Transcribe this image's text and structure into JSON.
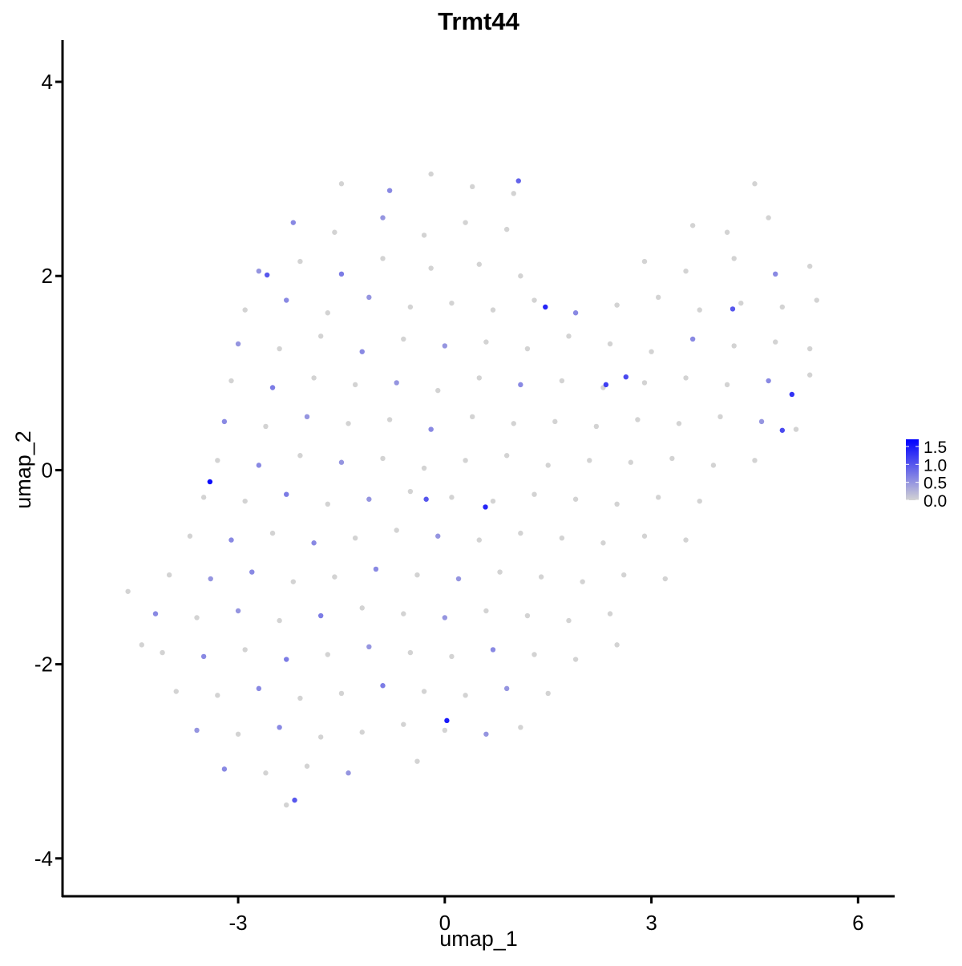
{
  "chart_data": {
    "type": "scatter",
    "title": "Trmt44",
    "xlabel": "umap_1",
    "ylabel": "umap_2",
    "xlim": [
      -5.55,
      6.52
    ],
    "ylim": [
      -4.39,
      4.43
    ],
    "xticks": [
      -3,
      0,
      3,
      6
    ],
    "yticks": [
      -4,
      -2,
      0,
      2,
      4
    ],
    "series": [
      {
        "x": [
          -1.5,
          -0.8,
          -0.2,
          0.4,
          1.0,
          4.5,
          -2.2,
          -1.6,
          -0.9,
          -0.3,
          0.3,
          0.9,
          3.6,
          4.1,
          4.7,
          -2.7,
          -2.1,
          -1.5,
          -0.9,
          -0.2,
          0.5,
          1.1,
          2.9,
          3.5,
          4.2,
          4.8,
          5.3,
          -2.9,
          -2.3,
          -1.7,
          -1.1,
          -0.5,
          0.1,
          0.7,
          1.3,
          1.9,
          2.5,
          3.1,
          3.7,
          4.3,
          4.9,
          5.4,
          -3.0,
          -2.4,
          -1.8,
          -1.2,
          -0.6,
          0.0,
          0.6,
          1.2,
          1.8,
          2.4,
          3.0,
          3.6,
          4.2,
          4.8,
          5.3,
          -3.1,
          -2.5,
          -1.9,
          -1.3,
          -0.7,
          -0.1,
          0.5,
          1.1,
          1.7,
          2.3,
          2.9,
          3.5,
          4.1,
          4.7,
          5.3,
          -3.2,
          -2.6,
          -2.0,
          -1.4,
          -0.8,
          -0.2,
          0.4,
          1.0,
          1.6,
          2.2,
          2.8,
          3.4,
          4.0,
          4.6,
          5.1,
          -3.3,
          -2.7,
          -2.1,
          -1.5,
          -0.9,
          -0.3,
          0.3,
          0.9,
          1.5,
          2.1,
          2.7,
          3.3,
          3.9,
          4.5,
          -3.5,
          -2.9,
          -2.3,
          -1.7,
          -1.1,
          -0.5,
          0.1,
          0.7,
          1.3,
          1.9,
          2.5,
          3.1,
          3.7,
          -3.7,
          -3.1,
          -2.5,
          -1.9,
          -1.3,
          -0.7,
          -0.1,
          0.5,
          1.1,
          1.7,
          2.3,
          2.9,
          3.5,
          -4.0,
          -3.4,
          -2.8,
          -2.2,
          -1.6,
          -1.0,
          -0.4,
          0.2,
          0.8,
          1.4,
          2.0,
          2.6,
          3.2,
          -4.2,
          -3.6,
          -3.0,
          -2.4,
          -1.8,
          -1.2,
          -0.6,
          0.0,
          0.6,
          1.2,
          1.8,
          2.4,
          -4.1,
          -3.5,
          -2.9,
          -2.3,
          -1.7,
          -1.1,
          -0.5,
          0.1,
          0.7,
          1.3,
          1.9,
          -3.9,
          -3.3,
          -2.7,
          -2.1,
          -1.5,
          -0.9,
          -0.3,
          0.3,
          0.9,
          1.5,
          -3.6,
          -3.0,
          -2.4,
          -1.8,
          -1.2,
          -0.6,
          0.0,
          0.6,
          1.1,
          -3.2,
          -2.6,
          -2.0,
          -1.4,
          -0.4,
          -2.3,
          -4.6,
          -4.4,
          2.5,
          -3.41,
          0.03,
          1.46,
          0.59,
          5.04,
          2.34,
          2.63,
          4.9,
          -2.18,
          4.18,
          -2.58,
          1.07,
          -0.27
        ],
        "y": [
          2.95,
          2.88,
          3.05,
          2.92,
          2.85,
          2.95,
          2.55,
          2.45,
          2.6,
          2.42,
          2.55,
          2.48,
          2.52,
          2.45,
          2.6,
          2.05,
          2.15,
          2.02,
          2.18,
          2.08,
          2.12,
          2.0,
          2.15,
          2.05,
          2.18,
          2.02,
          2.1,
          1.65,
          1.75,
          1.62,
          1.78,
          1.68,
          1.72,
          1.65,
          1.75,
          1.62,
          1.7,
          1.78,
          1.65,
          1.72,
          1.68,
          1.75,
          1.3,
          1.25,
          1.38,
          1.22,
          1.35,
          1.28,
          1.32,
          1.25,
          1.38,
          1.3,
          1.22,
          1.35,
          1.28,
          1.32,
          1.25,
          0.92,
          0.85,
          0.95,
          0.88,
          0.9,
          0.82,
          0.95,
          0.88,
          0.92,
          0.85,
          0.9,
          0.95,
          0.88,
          0.92,
          0.98,
          0.5,
          0.45,
          0.55,
          0.48,
          0.52,
          0.42,
          0.55,
          0.48,
          0.5,
          0.45,
          0.52,
          0.48,
          0.55,
          0.5,
          0.42,
          0.1,
          0.05,
          0.15,
          0.08,
          0.12,
          0.02,
          0.1,
          0.15,
          0.05,
          0.1,
          0.08,
          0.12,
          0.05,
          0.1,
          -0.28,
          -0.32,
          -0.25,
          -0.35,
          -0.3,
          -0.22,
          -0.28,
          -0.32,
          -0.25,
          -0.3,
          -0.35,
          -0.28,
          -0.32,
          -0.68,
          -0.72,
          -0.65,
          -0.75,
          -0.7,
          -0.62,
          -0.68,
          -0.72,
          -0.65,
          -0.7,
          -0.75,
          -0.68,
          -0.72,
          -1.08,
          -1.12,
          -1.05,
          -1.15,
          -1.1,
          -1.02,
          -1.08,
          -1.12,
          -1.05,
          -1.1,
          -1.15,
          -1.08,
          -1.12,
          -1.48,
          -1.52,
          -1.45,
          -1.55,
          -1.5,
          -1.42,
          -1.48,
          -1.52,
          -1.45,
          -1.5,
          -1.55,
          -1.48,
          -1.88,
          -1.92,
          -1.85,
          -1.95,
          -1.9,
          -1.82,
          -1.88,
          -1.92,
          -1.85,
          -1.9,
          -1.95,
          -2.28,
          -2.32,
          -2.25,
          -2.35,
          -2.3,
          -2.22,
          -2.28,
          -2.32,
          -2.25,
          -2.3,
          -2.68,
          -2.72,
          -2.65,
          -2.75,
          -2.7,
          -2.62,
          -2.68,
          -2.72,
          -2.65,
          -3.08,
          -3.12,
          -3.05,
          -3.12,
          -3.0,
          -3.45,
          -1.25,
          -1.8,
          -1.8,
          -0.12,
          -2.58,
          1.68,
          -0.38,
          0.78,
          0.88,
          0.96,
          0.41,
          -3.4,
          1.66,
          2.01,
          2.98,
          -0.3
        ],
        "values": [
          0,
          0.6,
          0,
          0,
          0,
          0,
          0.6,
          0,
          0.5,
          0,
          0,
          0,
          0,
          0,
          0,
          0.5,
          0,
          0.7,
          0,
          0,
          0,
          0,
          0,
          0,
          0,
          0.6,
          0,
          0,
          0.6,
          0,
          0.5,
          0,
          0,
          0,
          0,
          0.6,
          0,
          0,
          0,
          0,
          0,
          0,
          0.5,
          0,
          0,
          0.6,
          0,
          0.5,
          0,
          0,
          0,
          0,
          0,
          0.6,
          0,
          0,
          0,
          0,
          0.7,
          0,
          0,
          0.5,
          0,
          0,
          0.6,
          0,
          0,
          0,
          0,
          0,
          0.6,
          0,
          0.6,
          0,
          0.5,
          0,
          0,
          0.6,
          0,
          0,
          0,
          0,
          0,
          0,
          0,
          0.5,
          0,
          0,
          0.6,
          0,
          0.5,
          0,
          0,
          0,
          0,
          0,
          0,
          0,
          0,
          0,
          0,
          0,
          0,
          0.7,
          0,
          0.5,
          0,
          0,
          0,
          0,
          0,
          0,
          0,
          0,
          0,
          0.6,
          0,
          0.6,
          0,
          0,
          0.5,
          0,
          0,
          0,
          0,
          0,
          0,
          0,
          0.5,
          0.6,
          0,
          0,
          0.6,
          0,
          0.5,
          0,
          0,
          0,
          0,
          0,
          0.6,
          0,
          0.5,
          0,
          0.7,
          0,
          0,
          0.5,
          0,
          0,
          0,
          0,
          0,
          0.6,
          0,
          0.7,
          0,
          0.5,
          0,
          0,
          0.6,
          0,
          0,
          0,
          0,
          0.6,
          0,
          0,
          0.7,
          0,
          0,
          0.5,
          0,
          0.5,
          0,
          0.6,
          0,
          0,
          0,
          0,
          0.5,
          0,
          0.6,
          0,
          0,
          0.5,
          0,
          0,
          0,
          0,
          0,
          1.6,
          1.5,
          1.4,
          1.4,
          1.3,
          1.2,
          1.1,
          1.1,
          1.0,
          1.0,
          1.0,
          0.9,
          1.0
        ]
      }
    ],
    "colorbar": {
      "low_color": "#d3d3d3",
      "high_color": "#0000ff",
      "lim": [
        0,
        1.7
      ],
      "ticks": [
        {
          "value": 0,
          "label": "0.0"
        },
        0.5,
        {
          "value": 1,
          "label": "1.0"
        },
        1.5
      ]
    }
  }
}
